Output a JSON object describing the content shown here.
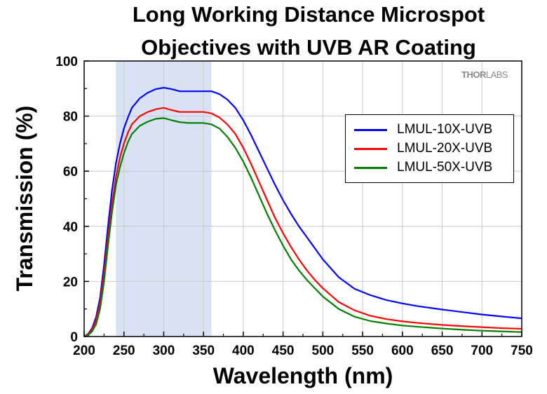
{
  "chart_data": {
    "type": "line",
    "title_lines": [
      "Long Working Distance Microspot",
      "Objectives with UVB AR Coating"
    ],
    "xlabel": "Wavelength (nm)",
    "ylabel": "Transmission (%)",
    "xlim": [
      200,
      750
    ],
    "ylim": [
      0,
      100
    ],
    "xticks": [
      200,
      250,
      300,
      350,
      400,
      450,
      500,
      550,
      600,
      650,
      700,
      750
    ],
    "yticks": [
      0,
      20,
      40,
      60,
      80,
      100
    ],
    "shaded_band": {
      "x_from": 240,
      "x_to": 360,
      "color": "#d9e2f5"
    },
    "grid": true,
    "legend_position": "right",
    "logo_text": "THORLABS",
    "series": [
      {
        "name": "LMUL-10X-UVB",
        "color": "#0000ff",
        "x": [
          200,
          205,
          210,
          215,
          220,
          225,
          230,
          235,
          240,
          245,
          250,
          255,
          260,
          270,
          280,
          290,
          300,
          310,
          320,
          330,
          340,
          350,
          360,
          370,
          380,
          390,
          400,
          410,
          420,
          430,
          440,
          450,
          460,
          470,
          480,
          490,
          500,
          520,
          540,
          560,
          580,
          600,
          620,
          650,
          680,
          700,
          720,
          750
        ],
        "y": [
          0,
          1,
          3,
          7,
          14,
          26,
          40,
          53,
          63,
          70,
          75.5,
          79.5,
          83,
          86.5,
          88.5,
          89.8,
          90.3,
          89.8,
          89,
          89,
          89,
          89,
          89,
          88,
          86,
          83,
          78.5,
          73,
          67,
          61,
          55,
          49.5,
          44.5,
          40,
          36,
          32,
          28,
          21.5,
          17.3,
          15,
          13.2,
          12,
          11,
          9.8,
          8.7,
          8,
          7.4,
          6.6
        ]
      },
      {
        "name": "LMUL-20X-UVB",
        "color": "#ff0000",
        "x": [
          200,
          205,
          210,
          215,
          220,
          225,
          230,
          235,
          240,
          245,
          250,
          255,
          260,
          270,
          280,
          290,
          300,
          310,
          320,
          330,
          340,
          350,
          360,
          370,
          380,
          390,
          400,
          410,
          420,
          430,
          440,
          450,
          460,
          470,
          480,
          490,
          500,
          520,
          540,
          560,
          580,
          600,
          620,
          650,
          680,
          700,
          720,
          750
        ],
        "y": [
          0,
          0.8,
          2.5,
          6,
          12,
          23,
          36,
          48,
          58,
          65,
          70,
          74,
          77,
          80,
          81.5,
          82.5,
          83,
          82.2,
          81.5,
          81.5,
          81.5,
          81.5,
          81,
          79.5,
          77,
          73.5,
          68.5,
          62.5,
          56,
          49.5,
          43,
          37.5,
          32.5,
          28,
          24,
          20.5,
          17.5,
          12.5,
          9.5,
          7.5,
          6.3,
          5.5,
          4.9,
          4.2,
          3.7,
          3.4,
          3.1,
          2.8
        ]
      },
      {
        "name": "LMUL-50X-UVB",
        "color": "#008000",
        "x": [
          200,
          205,
          210,
          215,
          220,
          225,
          230,
          235,
          240,
          245,
          250,
          255,
          260,
          270,
          280,
          290,
          300,
          310,
          320,
          330,
          340,
          350,
          360,
          370,
          380,
          390,
          400,
          410,
          420,
          430,
          440,
          450,
          460,
          470,
          480,
          490,
          500,
          520,
          540,
          560,
          580,
          600,
          620,
          650,
          680,
          700,
          720,
          750
        ],
        "y": [
          0,
          0.5,
          1.8,
          4.5,
          10,
          20,
          33,
          45,
          55,
          61.5,
          66.5,
          70.5,
          73.5,
          76.5,
          78,
          79,
          79.3,
          78.5,
          77.8,
          77.5,
          77.5,
          77.5,
          77,
          75.5,
          72.5,
          68.5,
          63.5,
          57.5,
          51,
          44.5,
          38.5,
          33,
          28,
          24,
          20.5,
          17.5,
          14.5,
          10,
          7.2,
          5.6,
          4.7,
          4,
          3.5,
          2.9,
          2.4,
          2.1,
          1.9,
          1.6
        ]
      }
    ]
  }
}
